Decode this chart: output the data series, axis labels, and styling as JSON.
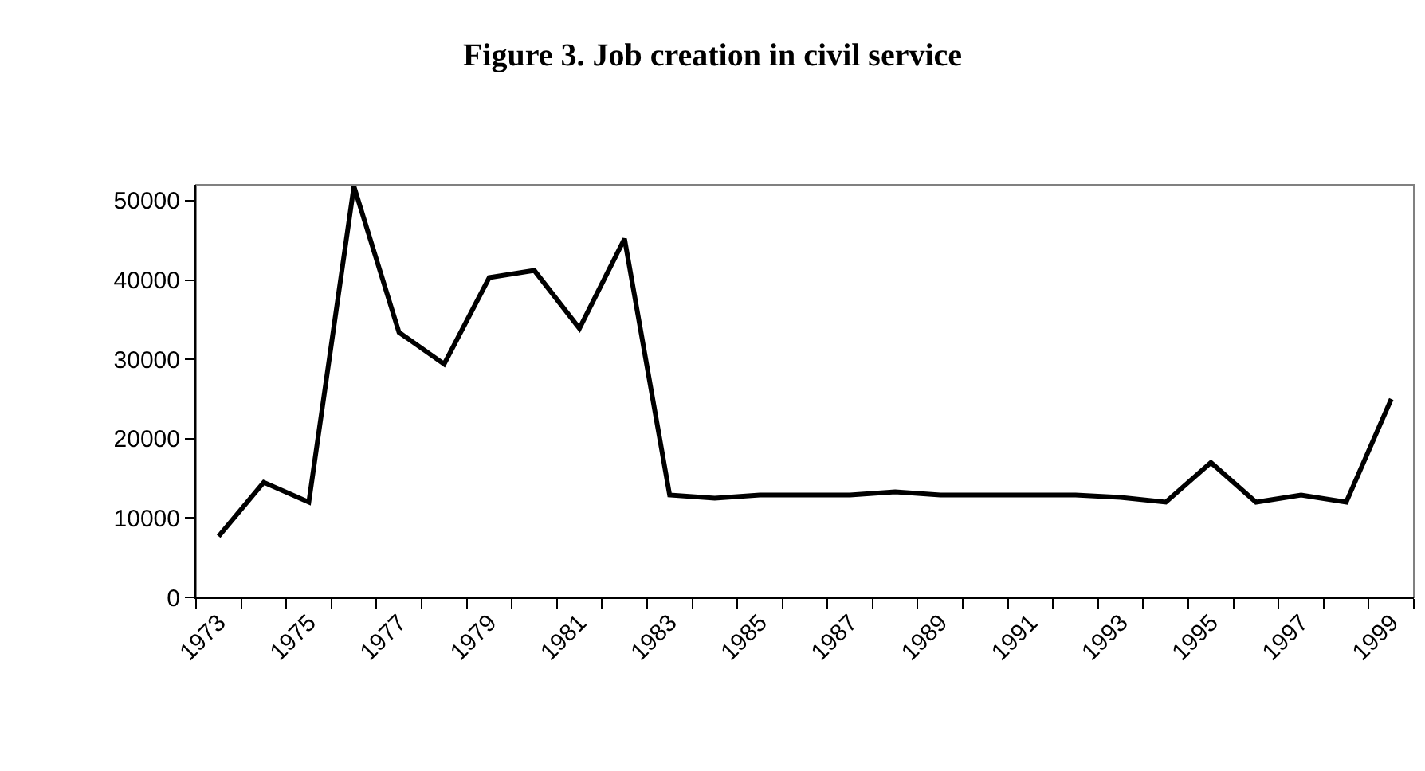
{
  "chart_data": {
    "type": "line",
    "title": "Figure 3. Job creation in civil service",
    "categories": [
      "1973",
      null,
      "1975",
      null,
      "1977",
      null,
      "1979",
      null,
      "1981",
      null,
      "1983",
      null,
      "1985",
      null,
      "1987",
      null,
      "1989",
      null,
      "1991",
      null,
      "1993",
      null,
      "1995",
      null,
      "1997",
      null,
      "1999"
    ],
    "series": [
      {
        "color": "#000000",
        "values": [
          7700,
          14500,
          12000,
          51800,
          33400,
          29400,
          40300,
          41200,
          33900,
          45200,
          12900,
          12500,
          12900,
          12900,
          12900,
          13300,
          12900,
          12900,
          12900,
          12900,
          12600,
          12000,
          17000,
          12000,
          12900,
          12000,
          25000
        ]
      }
    ],
    "ylim": [
      0,
      52000
    ],
    "yticks": [
      0,
      10000,
      20000,
      30000,
      40000,
      50000
    ],
    "grid": false,
    "marker": "none",
    "line_style": "solid"
  }
}
